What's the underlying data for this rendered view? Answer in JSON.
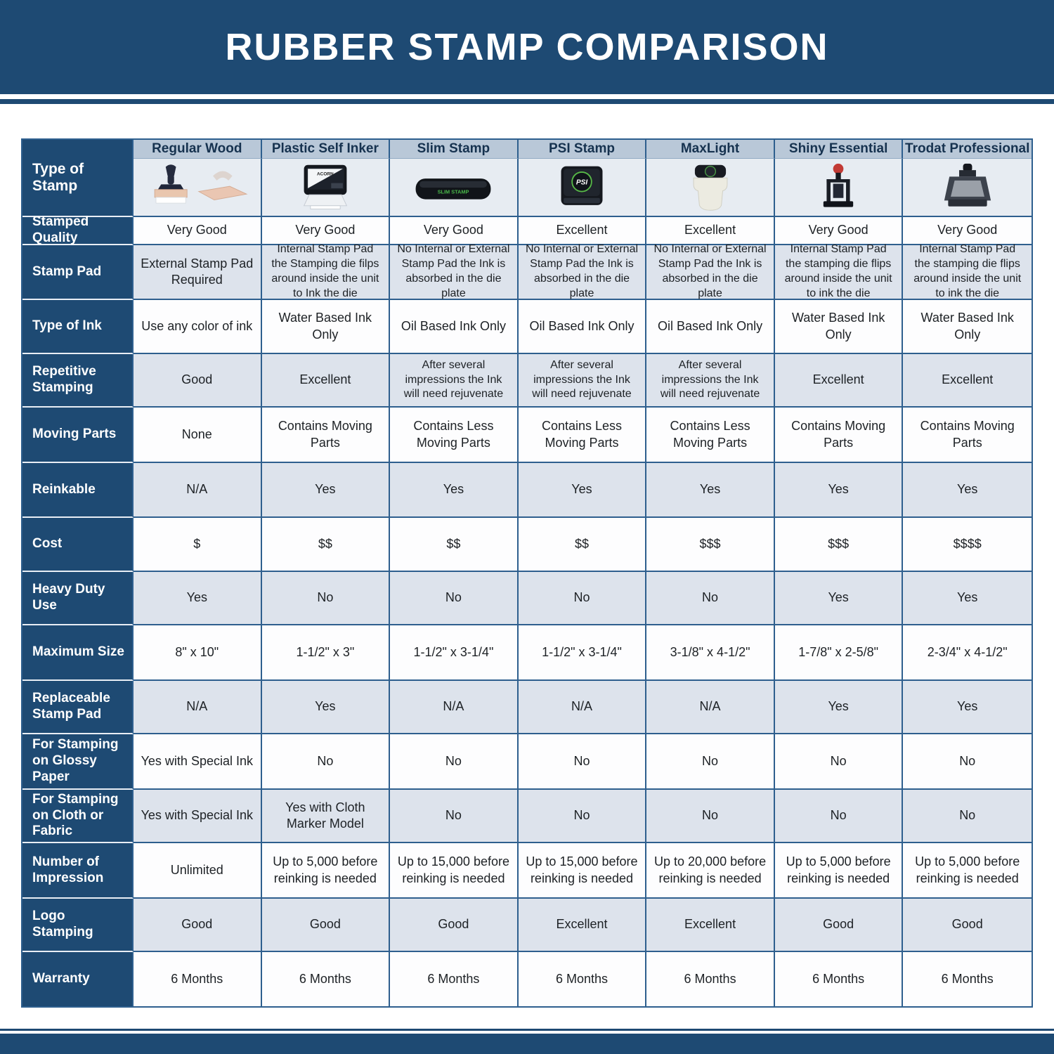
{
  "title": "RUBBER STAMP COMPARISON",
  "colors": {
    "navy": "#1e4a73",
    "border": "#2e5f8e",
    "header_row_bg": "#b9c8d8",
    "image_row_bg": "#e7ecf2",
    "light_row_bg": "#dde3ec",
    "white_row_bg": "#fdfdfe"
  },
  "table": {
    "corner_label": "Type of Stamp",
    "columns": [
      {
        "name": "Regular Wood",
        "icon": "regular-wood-stamp-icon"
      },
      {
        "name": "Plastic Self Inker",
        "icon": "plastic-self-inker-stamp-icon"
      },
      {
        "name": "Slim Stamp",
        "icon": "slim-stamp-icon"
      },
      {
        "name": "PSI Stamp",
        "icon": "psi-stamp-icon"
      },
      {
        "name": "MaxLight",
        "icon": "maxlight-stamp-icon"
      },
      {
        "name": "Shiny Essential",
        "icon": "shiny-essential-stamp-icon"
      },
      {
        "name": "Trodat Professional",
        "icon": "trodat-professional-stamp-icon"
      }
    ],
    "rows": [
      {
        "label": "Stamped Quality",
        "values": [
          "Very Good",
          "Very Good",
          "Very Good",
          "Excellent",
          "Excellent",
          "Very Good",
          "Very Good"
        ]
      },
      {
        "label": "Stamp Pad",
        "values": [
          "External Stamp Pad Required",
          "Internal Stamp Pad the Stamping die filps around inside the unit to Ink the die",
          "No Internal or External Stamp Pad the Ink is absorbed in the die plate",
          "No Internal or External Stamp Pad the Ink is absorbed in the die plate",
          "No Internal or External Stamp Pad the Ink is absorbed in the die plate",
          "Internal Stamp Pad the stamping die flips around inside the unit to ink the die",
          "Internal Stamp Pad the stamping die flips around inside the unit to ink the die"
        ]
      },
      {
        "label": "Type of Ink",
        "values": [
          "Use any color of ink",
          "Water Based Ink Only",
          "Oil Based Ink Only",
          "Oil Based Ink Only",
          "Oil Based Ink Only",
          "Water Based Ink Only",
          "Water Based Ink Only"
        ]
      },
      {
        "label": "Repetitive Stamping",
        "values": [
          "Good",
          "Excellent",
          "After several impressions the Ink will need rejuvenate",
          "After several impressions the Ink will need rejuvenate",
          "After several impressions the Ink will need rejuvenate",
          "Excellent",
          "Excellent"
        ]
      },
      {
        "label": "Moving Parts",
        "values": [
          "None",
          "Contains Moving Parts",
          "Contains Less Moving Parts",
          "Contains Less Moving Parts",
          "Contains Less Moving Parts",
          "Contains Moving Parts",
          "Contains Moving Parts"
        ]
      },
      {
        "label": "Reinkable",
        "values": [
          "N/A",
          "Yes",
          "Yes",
          "Yes",
          "Yes",
          "Yes",
          "Yes"
        ]
      },
      {
        "label": "Cost",
        "values": [
          "$",
          "$$",
          "$$",
          "$$",
          "$$$",
          "$$$",
          "$$$$"
        ]
      },
      {
        "label": "Heavy Duty Use",
        "values": [
          "Yes",
          "No",
          "No",
          "No",
          "No",
          "Yes",
          "Yes"
        ]
      },
      {
        "label": "Maximum Size",
        "values": [
          "8\" x 10\"",
          "1-1/2\" x 3\"",
          "1-1/2\" x 3-1/4\"",
          "1-1/2\" x 3-1/4\"",
          "3-1/8\" x 4-1/2\"",
          "1-7/8\" x 2-5/8\"",
          "2-3/4\" x 4-1/2\""
        ]
      },
      {
        "label": "Replaceable Stamp Pad",
        "values": [
          "N/A",
          "Yes",
          "N/A",
          "N/A",
          "N/A",
          "Yes",
          "Yes"
        ]
      },
      {
        "label": "For Stamping on Glossy Paper",
        "values": [
          "Yes with Special Ink",
          "No",
          "No",
          "No",
          "No",
          "No",
          "No"
        ]
      },
      {
        "label": "For Stamping on Cloth or Fabric",
        "values": [
          "Yes with Special Ink",
          "Yes with Cloth Marker Model",
          "No",
          "No",
          "No",
          "No",
          "No"
        ]
      },
      {
        "label": "Number of Impression",
        "values": [
          "Unlimited",
          "Up to 5,000 before reinking is needed",
          "Up to 15,000 before reinking is needed",
          "Up to 15,000 before reinking is needed",
          "Up to 20,000 before reinking is needed",
          "Up to 5,000 before reinking is needed",
          "Up to 5,000 before reinking is needed"
        ]
      },
      {
        "label": "Logo Stamping",
        "values": [
          "Good",
          "Good",
          "Good",
          "Excellent",
          "Excellent",
          "Good",
          "Good"
        ]
      },
      {
        "label": "Warranty",
        "values": [
          "6 Months",
          "6 Months",
          "6 Months",
          "6 Months",
          "6 Months",
          "6 Months",
          "6 Months"
        ]
      }
    ]
  }
}
